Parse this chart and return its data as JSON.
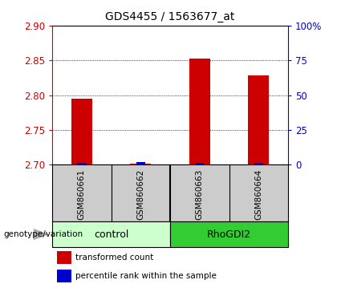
{
  "title": "GDS4455 / 1563677_at",
  "samples": [
    "GSM860661",
    "GSM860662",
    "GSM860663",
    "GSM860664"
  ],
  "red_values": [
    2.795,
    2.702,
    2.853,
    2.828
  ],
  "blue_values": [
    2.7025,
    2.7035,
    2.7025,
    2.7025
  ],
  "ylim_left": [
    2.7,
    2.9
  ],
  "ylim_right": [
    0,
    100
  ],
  "left_ticks": [
    2.7,
    2.75,
    2.8,
    2.85,
    2.9
  ],
  "right_ticks": [
    0,
    25,
    50,
    75,
    100
  ],
  "right_tick_labels": [
    "0",
    "25",
    "50",
    "75",
    "100%"
  ],
  "left_axis_color": "#cc0000",
  "right_axis_color": "#0000cc",
  "bar_width": 0.35,
  "blue_bar_width": 0.15,
  "red_color": "#cc0000",
  "blue_color": "#0000cc",
  "background_color": "#ffffff",
  "grid_color": "#000000",
  "genotype_label": "genotype/variation",
  "legend_red": "transformed count",
  "legend_blue": "percentile rank within the sample",
  "sample_bg_color": "#cccccc",
  "group_control_color": "#ccffcc",
  "group_rhogdi2_color": "#33cc33",
  "group_control_label": "control",
  "group_rhogdi2_label": "RhoGDI2",
  "base_value": 2.7
}
